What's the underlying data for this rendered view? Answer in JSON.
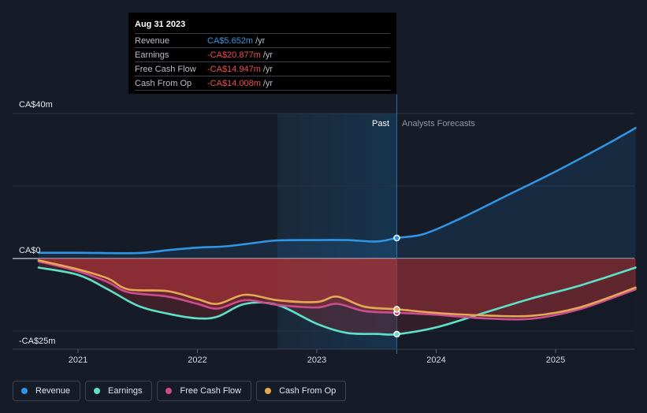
{
  "tooltip": {
    "date": "Aug 31 2023",
    "rows": [
      {
        "name": "Revenue",
        "value": "CA$5.652m",
        "unit": "/yr",
        "color": "#2f95e5"
      },
      {
        "name": "Earnings",
        "value": "-CA$20.877m",
        "unit": "/yr",
        "color": "#ef4e4e"
      },
      {
        "name": "Free Cash Flow",
        "value": "-CA$14.947m",
        "unit": "/yr",
        "color": "#ef4e4e"
      },
      {
        "name": "Cash From Op",
        "value": "-CA$14.008m",
        "unit": "/yr",
        "color": "#ef4e4e"
      }
    ]
  },
  "regions": {
    "past": "Past",
    "forecast": "Analysts Forecasts"
  },
  "y_labels": {
    "top": "CA$40m",
    "zero": "CA$0",
    "bottom": "-CA$25m"
  },
  "legend": [
    {
      "name": "Revenue",
      "color": "#2f95e5"
    },
    {
      "name": "Earnings",
      "color": "#5fe0c9"
    },
    {
      "name": "Free Cash Flow",
      "color": "#cc4d8f"
    },
    {
      "name": "Cash From Op",
      "color": "#e7a856"
    }
  ],
  "chart_data": {
    "type": "line",
    "x_ticks": [
      "2021",
      "2022",
      "2023",
      "2024",
      "2025"
    ],
    "ylim": [
      -25,
      40
    ],
    "y_unit": "CA$m",
    "past_forecast_split": 2023.67,
    "series": [
      {
        "name": "Revenue",
        "color": "#2f95e5",
        "x": [
          2020.67,
          2021.0,
          2021.5,
          2021.75,
          2022.0,
          2022.25,
          2022.5,
          2022.67,
          2023.0,
          2023.25,
          2023.5,
          2023.67,
          2023.9,
          2024.2,
          2024.6,
          2025.0,
          2025.4,
          2025.67
        ],
        "y": [
          1.6,
          1.6,
          1.5,
          2.3,
          3.0,
          3.4,
          4.4,
          5.0,
          5.1,
          5.1,
          4.7,
          5.652,
          6.8,
          11.0,
          17.5,
          24.0,
          31.0,
          36.0
        ]
      },
      {
        "name": "Earnings",
        "color": "#5fe0c9",
        "x": [
          2020.67,
          2021.0,
          2021.25,
          2021.5,
          2021.75,
          2022.0,
          2022.17,
          2022.4,
          2022.67,
          2023.0,
          2023.25,
          2023.5,
          2023.67,
          2024.0,
          2024.4,
          2024.8,
          2025.2,
          2025.67
        ],
        "y": [
          -2.5,
          -4.5,
          -8.5,
          -13.0,
          -15.2,
          -16.5,
          -16.0,
          -12.5,
          -12.8,
          -18.0,
          -20.5,
          -20.8,
          -20.877,
          -19.0,
          -15.0,
          -11.0,
          -7.5,
          -2.5
        ]
      },
      {
        "name": "Free Cash Flow",
        "color": "#cc4d8f",
        "x": [
          2020.67,
          2021.0,
          2021.25,
          2021.42,
          2021.75,
          2022.0,
          2022.17,
          2022.4,
          2022.67,
          2023.0,
          2023.17,
          2023.4,
          2023.67,
          2024.0,
          2024.4,
          2024.8,
          2025.2,
          2025.67
        ],
        "y": [
          -0.8,
          -3.5,
          -6.5,
          -9.3,
          -10.5,
          -12.5,
          -13.8,
          -11.5,
          -12.8,
          -13.5,
          -12.5,
          -14.5,
          -14.947,
          -15.5,
          -16.5,
          -16.6,
          -14.0,
          -8.5
        ]
      },
      {
        "name": "Cash From Op",
        "color": "#e7a856",
        "x": [
          2020.67,
          2021.0,
          2021.25,
          2021.42,
          2021.75,
          2022.0,
          2022.17,
          2022.4,
          2022.67,
          2023.0,
          2023.17,
          2023.4,
          2023.67,
          2024.0,
          2024.4,
          2024.8,
          2025.2,
          2025.67
        ],
        "y": [
          -0.5,
          -3.0,
          -5.5,
          -8.5,
          -9.0,
          -11.2,
          -12.5,
          -10.0,
          -11.5,
          -12.0,
          -10.5,
          -13.3,
          -14.008,
          -15.0,
          -15.7,
          -15.8,
          -13.5,
          -8.0
        ]
      }
    ]
  }
}
